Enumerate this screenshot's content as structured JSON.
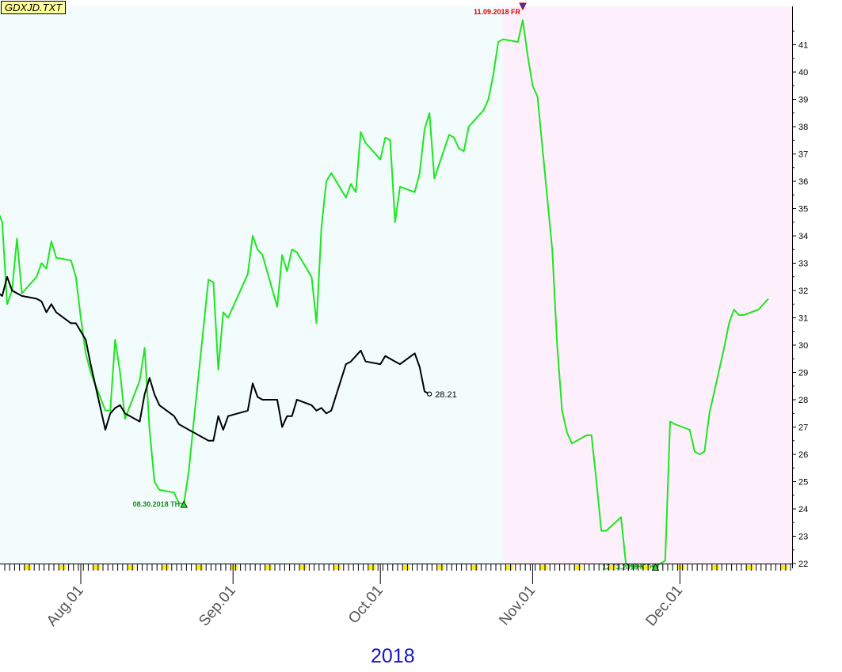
{
  "chart_data": {
    "type": "line",
    "title": "GDXJD.TXT",
    "year_label": "2018",
    "y_axis": {
      "min": 22,
      "max": 41,
      "ticks": [
        22,
        23,
        24,
        25,
        26,
        27,
        28,
        29,
        30,
        31,
        32,
        33,
        34,
        35,
        36,
        37,
        38,
        39,
        40,
        41
      ],
      "position": "right"
    },
    "x_axis": {
      "tick_labels": [
        {
          "label": "Aug.01",
          "date": "2018-08-01"
        },
        {
          "label": "Sep.01",
          "date": "2018-09-01"
        },
        {
          "label": "Oct.01",
          "date": "2018-10-01"
        },
        {
          "label": "Nov.01",
          "date": "2018-11-01"
        },
        {
          "label": "Dec.01",
          "date": "2018-12-01"
        }
      ]
    },
    "regions": [
      {
        "from": "2018-07-09",
        "to": "2018-10-26",
        "color": "#f2fcfc"
      },
      {
        "from": "2018-10-26",
        "to": "2018-12-20",
        "color": "#fdf0fc"
      }
    ],
    "colors": {
      "green_series": "#1ee61e",
      "black_series": "#000000",
      "peak_label": "#e00000",
      "trough_label": "#1a8a1a",
      "year": "#1414c8"
    },
    "series": [
      {
        "color": "#1ee61e",
        "points": [
          [
            "2018-07-09",
            34.6
          ],
          [
            "2018-07-10",
            34.6
          ],
          [
            "2018-07-11",
            35.7
          ],
          [
            "2018-07-12",
            36.5
          ],
          [
            "2018-07-13",
            35.9
          ],
          [
            "2018-07-16",
            34.5
          ],
          [
            "2018-07-17",
            31.5
          ],
          [
            "2018-07-18",
            32.0
          ],
          [
            "2018-07-19",
            33.9
          ],
          [
            "2018-07-20",
            31.9
          ],
          [
            "2018-07-23",
            32.5
          ],
          [
            "2018-07-24",
            33.0
          ],
          [
            "2018-07-25",
            32.8
          ],
          [
            "2018-07-26",
            33.8
          ],
          [
            "2018-07-27",
            33.2
          ],
          [
            "2018-07-30",
            33.1
          ],
          [
            "2018-07-31",
            32.5
          ],
          [
            "2018-08-01",
            31.0
          ],
          [
            "2018-08-02",
            29.7
          ],
          [
            "2018-08-03",
            29.0
          ],
          [
            "2018-08-06",
            27.6
          ],
          [
            "2018-08-07",
            27.6
          ],
          [
            "2018-08-08",
            30.2
          ],
          [
            "2018-08-09",
            29.0
          ],
          [
            "2018-08-10",
            27.3
          ],
          [
            "2018-08-13",
            28.7
          ],
          [
            "2018-08-14",
            29.9
          ],
          [
            "2018-08-15",
            26.9
          ],
          [
            "2018-08-16",
            25.0
          ],
          [
            "2018-08-17",
            24.7
          ],
          [
            "2018-08-20",
            24.6
          ],
          [
            "2018-08-21",
            24.2
          ],
          [
            "2018-08-22",
            24.2
          ],
          [
            "2018-08-23",
            25.4
          ],
          [
            "2018-08-24",
            27.2
          ],
          [
            "2018-08-27",
            32.4
          ],
          [
            "2018-08-28",
            32.3
          ],
          [
            "2018-08-29",
            29.1
          ],
          [
            "2018-08-30",
            31.2
          ],
          [
            "2018-08-31",
            31.0
          ],
          [
            "2018-09-04",
            32.6
          ],
          [
            "2018-09-05",
            34.0
          ],
          [
            "2018-09-06",
            33.5
          ],
          [
            "2018-09-07",
            33.3
          ],
          [
            "2018-09-10",
            31.4
          ],
          [
            "2018-09-11",
            33.3
          ],
          [
            "2018-09-12",
            32.7
          ],
          [
            "2018-09-13",
            33.5
          ],
          [
            "2018-09-14",
            33.4
          ],
          [
            "2018-09-17",
            32.5
          ],
          [
            "2018-09-18",
            30.8
          ],
          [
            "2018-09-19",
            34.3
          ],
          [
            "2018-09-20",
            36.0
          ],
          [
            "2018-09-21",
            36.3
          ],
          [
            "2018-09-24",
            35.4
          ],
          [
            "2018-09-25",
            35.9
          ],
          [
            "2018-09-26",
            35.6
          ],
          [
            "2018-09-27",
            37.8
          ],
          [
            "2018-09-28",
            37.4
          ],
          [
            "2018-10-01",
            36.8
          ],
          [
            "2018-10-02",
            37.6
          ],
          [
            "2018-10-03",
            37.5
          ],
          [
            "2018-10-04",
            34.5
          ],
          [
            "2018-10-05",
            35.8
          ],
          [
            "2018-10-08",
            35.6
          ],
          [
            "2018-10-09",
            36.3
          ],
          [
            "2018-10-10",
            37.9
          ],
          [
            "2018-10-11",
            38.5
          ],
          [
            "2018-10-12",
            36.1
          ],
          [
            "2018-10-15",
            37.7
          ],
          [
            "2018-10-16",
            37.6
          ],
          [
            "2018-10-17",
            37.2
          ],
          [
            "2018-10-18",
            37.1
          ],
          [
            "2018-10-19",
            38.0
          ],
          [
            "2018-10-22",
            38.6
          ],
          [
            "2018-10-23",
            39.0
          ],
          [
            "2018-10-24",
            39.9
          ],
          [
            "2018-10-25",
            41.1
          ],
          [
            "2018-10-26",
            41.2
          ],
          [
            "2018-10-29",
            41.1
          ],
          [
            "2018-10-30",
            41.9
          ],
          [
            "2018-10-31",
            40.6
          ],
          [
            "2018-11-01",
            39.5
          ],
          [
            "2018-11-02",
            39.1
          ],
          [
            "2018-11-05",
            33.5
          ],
          [
            "2018-11-06",
            30.0
          ],
          [
            "2018-11-07",
            27.6
          ],
          [
            "2018-11-08",
            26.8
          ],
          [
            "2018-11-09",
            26.4
          ],
          [
            "2018-11-12",
            26.7
          ],
          [
            "2018-11-13",
            26.7
          ],
          [
            "2018-11-14",
            25.0
          ],
          [
            "2018-11-15",
            23.2
          ],
          [
            "2018-11-16",
            23.2
          ],
          [
            "2018-11-19",
            23.7
          ],
          [
            "2018-11-20",
            22.0
          ],
          [
            "2018-11-21",
            21.9
          ],
          [
            "2018-11-23",
            21.9
          ],
          [
            "2018-11-26",
            21.9
          ],
          [
            "2018-11-27",
            22.0
          ],
          [
            "2018-11-28",
            22.1
          ],
          [
            "2018-11-29",
            27.2
          ],
          [
            "2018-11-30",
            27.1
          ],
          [
            "2018-12-03",
            26.9
          ],
          [
            "2018-12-04",
            26.1
          ],
          [
            "2018-12-05",
            26.0
          ],
          [
            "2018-12-06",
            26.1
          ],
          [
            "2018-12-07",
            27.5
          ],
          [
            "2018-12-10",
            29.9
          ],
          [
            "2018-12-11",
            30.8
          ],
          [
            "2018-12-12",
            31.3
          ],
          [
            "2018-12-13",
            31.1
          ],
          [
            "2018-12-14",
            31.1
          ],
          [
            "2018-12-17",
            31.3
          ],
          [
            "2018-12-18",
            31.5
          ],
          [
            "2018-12-19",
            31.7
          ]
        ]
      },
      {
        "color": "#000000",
        "points": [
          [
            "2018-07-09",
            32.3
          ],
          [
            "2018-07-10",
            32.1
          ],
          [
            "2018-07-11",
            32.3
          ],
          [
            "2018-07-12",
            31.9
          ],
          [
            "2018-07-13",
            32.2
          ],
          [
            "2018-07-16",
            31.8
          ],
          [
            "2018-07-17",
            32.5
          ],
          [
            "2018-07-18",
            32.0
          ],
          [
            "2018-07-19",
            31.9
          ],
          [
            "2018-07-20",
            31.8
          ],
          [
            "2018-07-23",
            31.7
          ],
          [
            "2018-07-24",
            31.6
          ],
          [
            "2018-07-25",
            31.2
          ],
          [
            "2018-07-26",
            31.5
          ],
          [
            "2018-07-27",
            31.2
          ],
          [
            "2018-07-30",
            30.8
          ],
          [
            "2018-07-31",
            30.8
          ],
          [
            "2018-08-01",
            30.5
          ],
          [
            "2018-08-02",
            30.2
          ],
          [
            "2018-08-03",
            29.3
          ],
          [
            "2018-08-06",
            26.9
          ],
          [
            "2018-08-07",
            27.5
          ],
          [
            "2018-08-08",
            27.7
          ],
          [
            "2018-08-09",
            27.8
          ],
          [
            "2018-08-10",
            27.5
          ],
          [
            "2018-08-13",
            27.2
          ],
          [
            "2018-08-14",
            28.2
          ],
          [
            "2018-08-15",
            28.8
          ],
          [
            "2018-08-16",
            28.2
          ],
          [
            "2018-08-17",
            27.8
          ],
          [
            "2018-08-20",
            27.4
          ],
          [
            "2018-08-21",
            27.1
          ],
          [
            "2018-08-22",
            27.0
          ],
          [
            "2018-08-23",
            26.9
          ],
          [
            "2018-08-24",
            26.8
          ],
          [
            "2018-08-27",
            26.5
          ],
          [
            "2018-08-28",
            26.5
          ],
          [
            "2018-08-29",
            27.4
          ],
          [
            "2018-08-30",
            26.9
          ],
          [
            "2018-08-31",
            27.4
          ],
          [
            "2018-09-04",
            27.6
          ],
          [
            "2018-09-05",
            28.6
          ],
          [
            "2018-09-06",
            28.1
          ],
          [
            "2018-09-07",
            28.0
          ],
          [
            "2018-09-10",
            28.0
          ],
          [
            "2018-09-11",
            27.0
          ],
          [
            "2018-09-12",
            27.4
          ],
          [
            "2018-09-13",
            27.4
          ],
          [
            "2018-09-14",
            28.0
          ],
          [
            "2018-09-17",
            27.8
          ],
          [
            "2018-09-18",
            27.6
          ],
          [
            "2018-09-19",
            27.7
          ],
          [
            "2018-09-20",
            27.5
          ],
          [
            "2018-09-21",
            27.6
          ],
          [
            "2018-09-24",
            29.3
          ],
          [
            "2018-09-25",
            29.4
          ],
          [
            "2018-09-26",
            29.6
          ],
          [
            "2018-09-27",
            29.8
          ],
          [
            "2018-09-28",
            29.4
          ],
          [
            "2018-10-01",
            29.3
          ],
          [
            "2018-10-02",
            29.6
          ],
          [
            "2018-10-03",
            29.5
          ],
          [
            "2018-10-04",
            29.4
          ],
          [
            "2018-10-05",
            29.3
          ],
          [
            "2018-10-08",
            29.7
          ],
          [
            "2018-10-09",
            29.2
          ],
          [
            "2018-10-10",
            28.3
          ],
          [
            "2018-10-11",
            28.21
          ]
        ],
        "end_label": "28.21"
      }
    ],
    "annotations": [
      {
        "label": "08.30.2018 TH",
        "date": "2018-08-22",
        "value": 24.2,
        "type": "trough",
        "color": "#1a8a1a"
      },
      {
        "label": "11.09.2018 FR",
        "date": "2018-10-30",
        "value": 41.9,
        "type": "peak",
        "color": "#e00000"
      },
      {
        "label": "12.03.2018 MO",
        "date": "2018-11-26",
        "value": 21.9,
        "type": "trough",
        "color": "#1a8a1a"
      }
    ]
  }
}
